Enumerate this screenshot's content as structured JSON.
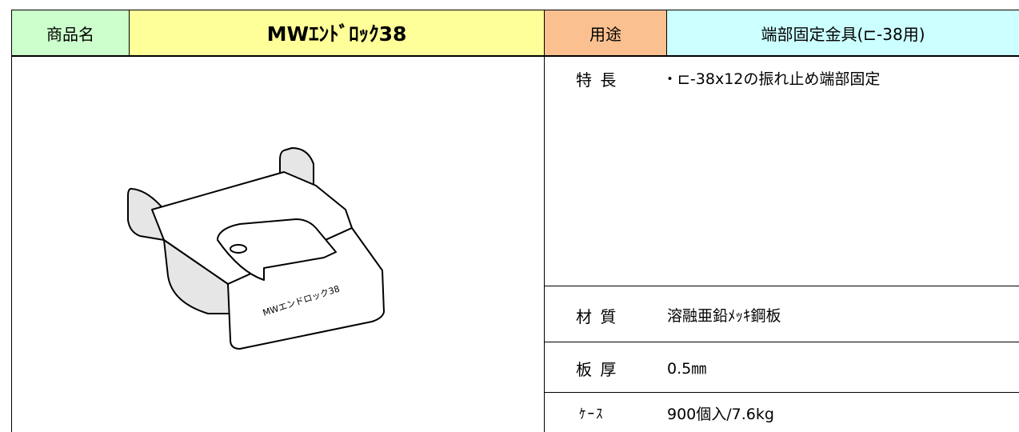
{
  "header": {
    "product_label": "商品名",
    "product_name": "MWｴﾝﾄﾞﾛｯｸ38",
    "use_label": "用途",
    "use": "端部固定金具(⊏-38用)"
  },
  "image": {
    "label": "MWエンドロック38"
  },
  "specs": [
    {
      "label": "特 長",
      "value": "・⊏-38x12の振れ止め端部固定"
    },
    {
      "label": "材 質",
      "value": "溶融亜鉛ﾒｯｷ鋼板"
    },
    {
      "label": "板 厚",
      "value": "0.5㎜"
    },
    {
      "label": "ｹｰｽ",
      "value": "900個入/7.6kg"
    }
  ]
}
